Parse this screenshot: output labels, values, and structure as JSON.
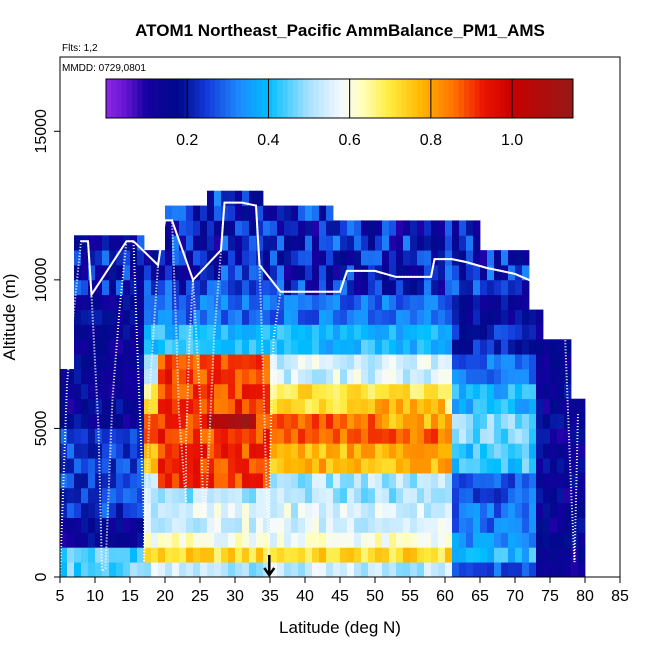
{
  "chart_data": {
    "type": "heatmap",
    "title": "ATOM1 Northeast_Pacific AmmBalance_PM1_AMS",
    "flights_label": "Flts: 1,2",
    "dates_label": "MMDD: 0729,0801",
    "xlabel": "Latitude (deg N)",
    "ylabel": "Altitude (m)",
    "xlim": [
      5,
      85
    ],
    "ylim": [
      0,
      17500
    ],
    "x_ticks": [
      "5",
      "10",
      "15",
      "20",
      "25",
      "30",
      "35",
      "40",
      "45",
      "50",
      "55",
      "60",
      "65",
      "70",
      "75",
      "80",
      "85"
    ],
    "y_ticks": [
      "0",
      "5000",
      "10000",
      "15000"
    ],
    "colorbar": {
      "range": [
        0.0,
        1.15
      ],
      "tick_labels": [
        "0.2",
        "0.4",
        "0.6",
        "0.8",
        "1.0"
      ],
      "tick_values": [
        0.2,
        0.4,
        0.6,
        0.8,
        1.0
      ]
    },
    "marker_latitude": 34.9,
    "grid_lat_step": 1,
    "grid_alt_step": 500,
    "cell_values_description": "colour-coded ammonium balance curtain, latitude 5-79 N, altitude 0-13000 m",
    "columns": [
      {
        "lat": 5,
        "top": 7000
      },
      {
        "lat": 6,
        "top": 7000
      },
      {
        "lat": 7,
        "top": 11500
      },
      {
        "lat": 10,
        "top": 11500
      },
      {
        "lat": 12,
        "top": 11500
      },
      {
        "lat": 17,
        "top": 11000
      },
      {
        "lat": 20,
        "top": 12500
      },
      {
        "lat": 26,
        "top": 13000
      },
      {
        "lat": 34,
        "top": 12500
      },
      {
        "lat": 44,
        "top": 12000
      },
      {
        "lat": 60,
        "top": 12000
      },
      {
        "lat": 65,
        "top": 11000
      },
      {
        "lat": 72,
        "top": 9000
      },
      {
        "lat": 74,
        "top": 8000
      },
      {
        "lat": 78,
        "top": 6000
      },
      {
        "lat": 79,
        "top": 6000
      }
    ],
    "flight_track": [
      [
        5,
        0
      ],
      [
        6,
        6500
      ],
      [
        7,
        9000
      ],
      [
        8,
        11300
      ],
      [
        9,
        11300
      ],
      [
        9.5,
        9500
      ],
      [
        10.5,
        5000
      ],
      [
        11,
        200
      ],
      [
        11.5,
        300
      ],
      [
        12.5,
        6000
      ],
      [
        13.5,
        9000
      ],
      [
        14.5,
        11300
      ],
      [
        15.5,
        11300
      ],
      [
        16,
        8000
      ],
      [
        17,
        2000
      ],
      [
        17,
        500
      ],
      [
        18,
        7000
      ],
      [
        19,
        10500
      ],
      [
        20,
        12000
      ],
      [
        21,
        12000
      ],
      [
        21.5,
        9000
      ],
      [
        22,
        5500
      ],
      [
        23,
        2500
      ],
      [
        23,
        4500
      ],
      [
        23.5,
        8000
      ],
      [
        24,
        10000
      ],
      [
        25,
        6000
      ],
      [
        25.5,
        2000
      ],
      [
        26,
        3000
      ],
      [
        27,
        8000
      ],
      [
        28,
        11000
      ],
      [
        28.5,
        12600
      ],
      [
        31,
        12600
      ],
      [
        33,
        12500
      ],
      [
        33.5,
        10500
      ],
      [
        34,
        7000
      ],
      [
        34.5,
        3000
      ],
      [
        34.8,
        500
      ],
      [
        35,
        4000
      ],
      [
        35.5,
        8000
      ],
      [
        36.5,
        9600
      ],
      [
        38,
        9600
      ],
      [
        40.5,
        9600
      ],
      [
        43,
        9600
      ],
      [
        45,
        9600
      ],
      [
        46,
        10300
      ],
      [
        50,
        10300
      ],
      [
        53,
        10100
      ],
      [
        56,
        10100
      ],
      [
        58,
        10100
      ],
      [
        58.5,
        10700
      ],
      [
        61,
        10700
      ],
      [
        63,
        10600
      ],
      [
        64.5,
        10500
      ],
      [
        66,
        10400
      ],
      [
        68,
        10300
      ],
      [
        70,
        10200
      ],
      [
        72,
        10000
      ],
      [
        74,
        9800
      ],
      [
        76,
        9600
      ],
      [
        77,
        9000
      ],
      [
        77.5,
        6000
      ],
      [
        78,
        3000
      ],
      [
        78.5,
        500
      ],
      [
        79,
        5500
      ]
    ]
  }
}
